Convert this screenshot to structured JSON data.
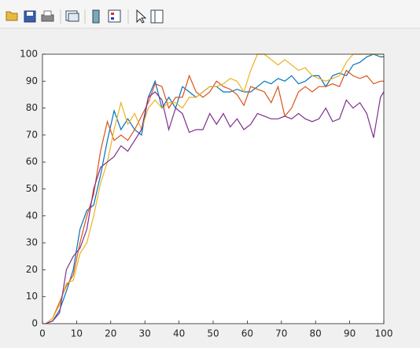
{
  "chart_data": {
    "type": "line",
    "x": [
      1,
      3,
      5,
      7,
      9,
      11,
      13,
      15,
      17,
      19,
      21,
      23,
      25,
      27,
      29,
      31,
      33,
      35,
      37,
      39,
      41,
      43,
      45,
      47,
      49,
      51,
      53,
      55,
      57,
      59,
      61,
      63,
      65,
      67,
      69,
      71,
      73,
      75,
      77,
      79,
      81,
      83,
      85,
      87,
      89,
      91,
      93,
      95,
      97,
      99,
      100
    ],
    "series": [
      {
        "color": "#0072bd",
        "values": [
          0,
          1,
          5,
          12,
          20,
          35,
          42,
          44,
          55,
          68,
          79,
          72,
          76,
          72,
          70,
          84,
          90,
          80,
          84,
          80,
          88,
          86,
          84,
          86,
          88,
          88,
          86,
          86,
          87,
          86,
          86,
          88,
          90,
          89,
          91,
          90,
          92,
          89,
          90,
          92,
          92,
          88,
          92,
          93,
          92,
          96,
          97,
          99,
          100,
          99,
          99
        ]
      },
      {
        "color": "#d95319",
        "values": [
          0,
          2,
          8,
          14,
          18,
          30,
          40,
          48,
          64,
          75,
          68,
          70,
          68,
          72,
          77,
          82,
          89,
          88,
          80,
          84,
          84,
          92,
          86,
          84,
          86,
          90,
          88,
          87,
          85,
          81,
          88,
          87,
          86,
          82,
          88,
          77,
          80,
          86,
          88,
          86,
          88,
          88,
          89,
          88,
          94,
          92,
          91,
          92,
          89,
          90,
          90
        ]
      },
      {
        "color": "#edb120",
        "values": [
          0,
          2,
          7,
          15,
          16,
          26,
          30,
          40,
          52,
          60,
          72,
          82,
          74,
          78,
          72,
          80,
          83,
          80,
          82,
          82,
          80,
          84,
          84,
          86,
          88,
          88,
          89,
          91,
          90,
          86,
          94,
          100,
          100,
          98,
          96,
          98,
          96,
          94,
          95,
          92,
          91,
          90,
          91,
          92,
          97,
          100,
          100,
          100,
          100,
          100,
          100
        ]
      },
      {
        "color": "#7e2f8e",
        "values": [
          0,
          1,
          4,
          20,
          25,
          28,
          35,
          50,
          58,
          60,
          62,
          66,
          64,
          68,
          72,
          84,
          86,
          83,
          72,
          80,
          78,
          71,
          72,
          72,
          78,
          74,
          78,
          73,
          76,
          72,
          74,
          78,
          77,
          76,
          76,
          77,
          76,
          78,
          76,
          75,
          76,
          80,
          75,
          76,
          83,
          80,
          82,
          78,
          69,
          84,
          86
        ]
      }
    ],
    "xlim": [
      0,
      100
    ],
    "ylim": [
      0,
      100
    ],
    "xticks": [
      0,
      10,
      20,
      30,
      40,
      50,
      60,
      70,
      80,
      90,
      100
    ],
    "yticks": [
      0,
      10,
      20,
      30,
      40,
      50,
      60,
      70,
      80,
      90,
      100
    ]
  }
}
